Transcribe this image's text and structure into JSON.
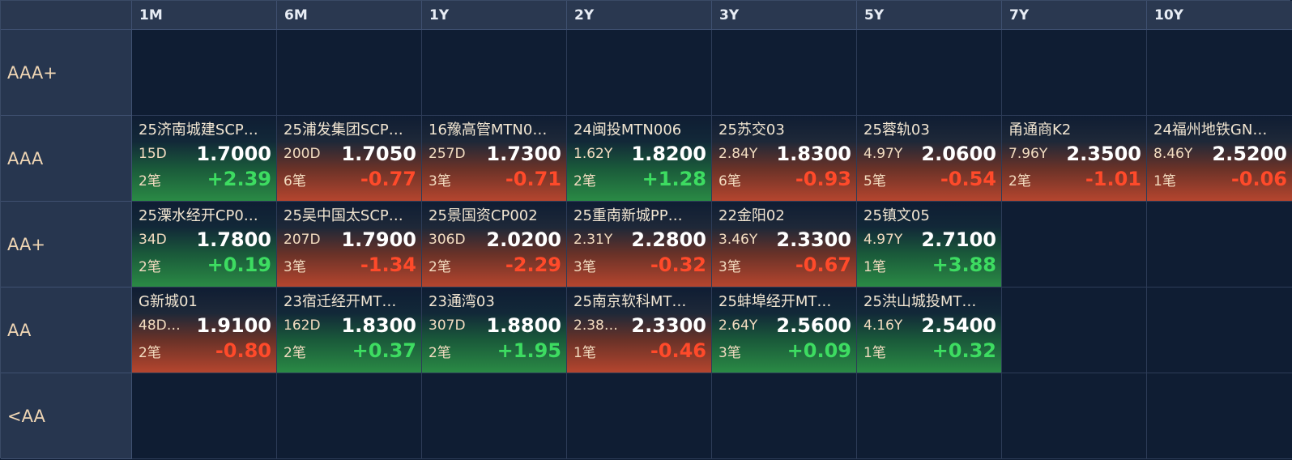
{
  "columns": [
    "1M",
    "6M",
    "1Y",
    "2Y",
    "3Y",
    "5Y",
    "7Y",
    "10Y"
  ],
  "rows": [
    {
      "label": "AAA+",
      "cells": [
        null,
        null,
        null,
        null,
        null,
        null,
        null,
        null
      ]
    },
    {
      "label": "AAA",
      "cells": [
        {
          "name": "25济南城建SCP…",
          "term": "15D",
          "yield": "1.7000",
          "count": "2笔",
          "change": "+2.39",
          "dir": "up"
        },
        {
          "name": "25浦发集团SCP…",
          "term": "200D",
          "yield": "1.7050",
          "count": "6笔",
          "change": "-0.77",
          "dir": "down"
        },
        {
          "name": "16豫高管MTN0…",
          "term": "257D",
          "yield": "1.7300",
          "count": "3笔",
          "change": "-0.71",
          "dir": "down"
        },
        {
          "name": "24闽投MTN006",
          "term": "1.62Y",
          "yield": "1.8200",
          "count": "2笔",
          "change": "+1.28",
          "dir": "up"
        },
        {
          "name": "25苏交03",
          "term": "2.84Y",
          "yield": "1.8300",
          "count": "6笔",
          "change": "-0.93",
          "dir": "down"
        },
        {
          "name": "25蓉轨03",
          "term": "4.97Y",
          "yield": "2.0600",
          "count": "5笔",
          "change": "-0.54",
          "dir": "down"
        },
        {
          "name": "甬通商K2",
          "term": "7.96Y",
          "yield": "2.3500",
          "count": "2笔",
          "change": "-1.01",
          "dir": "down"
        },
        {
          "name": "24福州地铁GN…",
          "term": "8.46Y",
          "yield": "2.5200",
          "count": "1笔",
          "change": "-0.06",
          "dir": "down"
        }
      ]
    },
    {
      "label": "AA+",
      "cells": [
        {
          "name": "25溧水经开CP0…",
          "term": "34D",
          "yield": "1.7800",
          "count": "2笔",
          "change": "+0.19",
          "dir": "up"
        },
        {
          "name": "25吴中国太SCP…",
          "term": "207D",
          "yield": "1.7900",
          "count": "3笔",
          "change": "-1.34",
          "dir": "down"
        },
        {
          "name": "25景国资CP002",
          "term": "306D",
          "yield": "2.0200",
          "count": "2笔",
          "change": "-2.29",
          "dir": "down"
        },
        {
          "name": "25重南新城PP…",
          "term": "2.31Y",
          "yield": "2.2800",
          "count": "3笔",
          "change": "-0.32",
          "dir": "down"
        },
        {
          "name": "22金阳02",
          "term": "3.46Y",
          "yield": "2.3300",
          "count": "3笔",
          "change": "-0.67",
          "dir": "down"
        },
        {
          "name": "25镇文05",
          "term": "4.97Y",
          "yield": "2.7100",
          "count": "1笔",
          "change": "+3.88",
          "dir": "up"
        },
        null,
        null
      ]
    },
    {
      "label": "AA",
      "cells": [
        {
          "name": "G新城01",
          "term": "48D…",
          "yield": "1.9100",
          "count": "2笔",
          "change": "-0.80",
          "dir": "down"
        },
        {
          "name": "23宿迁经开MT…",
          "term": "162D",
          "yield": "1.8300",
          "count": "2笔",
          "change": "+0.37",
          "dir": "up"
        },
        {
          "name": "23通湾03",
          "term": "307D",
          "yield": "1.8800",
          "count": "2笔",
          "change": "+1.95",
          "dir": "up"
        },
        {
          "name": "25南京软科MT…",
          "term": "2.38…",
          "yield": "2.3300",
          "count": "1笔",
          "change": "-0.46",
          "dir": "down"
        },
        {
          "name": "25蚌埠经开MT…",
          "term": "2.64Y",
          "yield": "2.5600",
          "count": "3笔",
          "change": "+0.09",
          "dir": "up"
        },
        {
          "name": "25洪山城投MT…",
          "term": "4.16Y",
          "yield": "2.5400",
          "count": "1笔",
          "change": "+0.32",
          "dir": "up"
        },
        null,
        null
      ]
    },
    {
      "label": "<AA",
      "cells": [
        null,
        null,
        null,
        null,
        null,
        null,
        null,
        null
      ]
    }
  ],
  "colors": {
    "up": "#3ddc61",
    "down": "#ff4a2a",
    "background": "#0e1c33",
    "header": "#2a3850"
  }
}
